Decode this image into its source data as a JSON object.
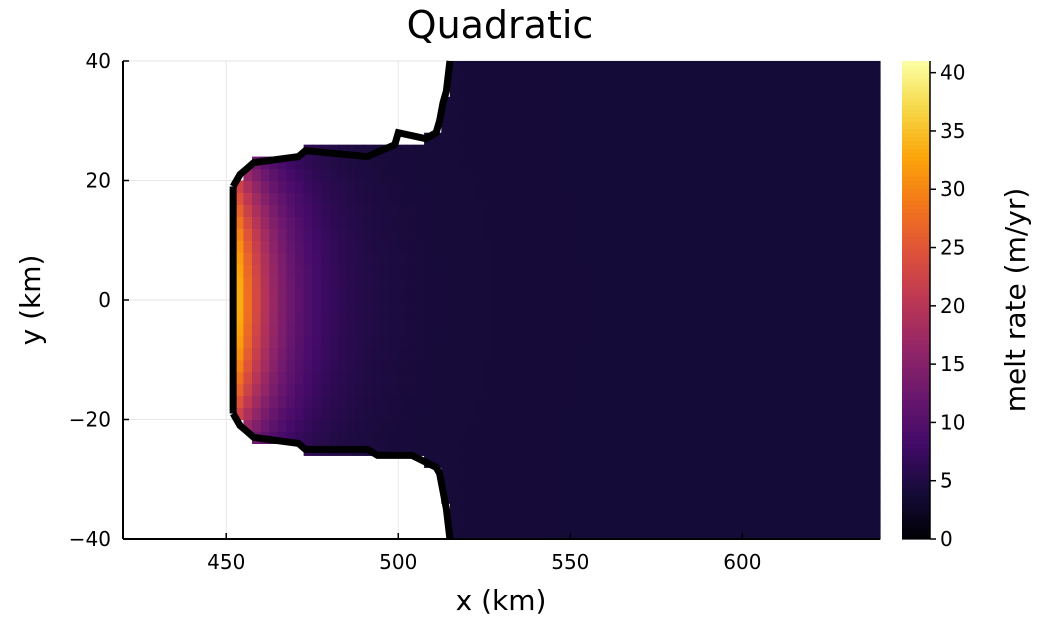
{
  "chart_data": {
    "type": "heatmap",
    "title": "Quadratic",
    "xlabel": "x (km)",
    "ylabel": "y (km)",
    "colorbar_label": "melt rate (m/yr)",
    "colormap": "inferno",
    "xlim": [
      420,
      640
    ],
    "ylim": [
      -40,
      40
    ],
    "clim": [
      0,
      41
    ],
    "x_ticks": [
      450,
      500,
      550,
      600
    ],
    "x_tick_labels": [
      "450",
      "500",
      "550",
      "600"
    ],
    "y_ticks": [
      -40,
      -20,
      0,
      20,
      40
    ],
    "y_tick_labels": [
      "−40",
      "−20",
      "0",
      "20",
      "40"
    ],
    "colorbar_ticks": [
      0,
      5,
      10,
      15,
      20,
      25,
      30,
      35,
      40
    ],
    "colorbar_tick_labels": [
      "0",
      "5",
      "10",
      "15",
      "20",
      "25",
      "30",
      "35",
      "40"
    ],
    "grid": true,
    "grounding_line_color": "#000000",
    "upper_boundary": [
      [
        452,
        19
      ],
      [
        454,
        21
      ],
      [
        456,
        22
      ],
      [
        458,
        23
      ],
      [
        471,
        24
      ],
      [
        473,
        25
      ],
      [
        491,
        24
      ],
      [
        499,
        26
      ],
      [
        500,
        28
      ],
      [
        508,
        27
      ],
      [
        511,
        28
      ],
      [
        512,
        30
      ],
      [
        513,
        33
      ],
      [
        514,
        35
      ],
      [
        515,
        40
      ]
    ],
    "lower_boundary": [
      [
        452,
        -19
      ],
      [
        454,
        -21
      ],
      [
        456,
        -22
      ],
      [
        458,
        -23
      ],
      [
        471,
        -24
      ],
      [
        473,
        -25
      ],
      [
        491,
        -25
      ],
      [
        494,
        -26
      ],
      [
        504,
        -26
      ],
      [
        511,
        -28
      ],
      [
        512,
        -29
      ],
      [
        513,
        -32
      ],
      [
        514,
        -35
      ],
      [
        515,
        -40
      ]
    ],
    "melt_profile": {
      "front_x": 451,
      "front_value": 41,
      "ocean_value": 4,
      "decay_km": 12,
      "lateral_falloff": 0.55,
      "half_width_km": 23
    }
  }
}
